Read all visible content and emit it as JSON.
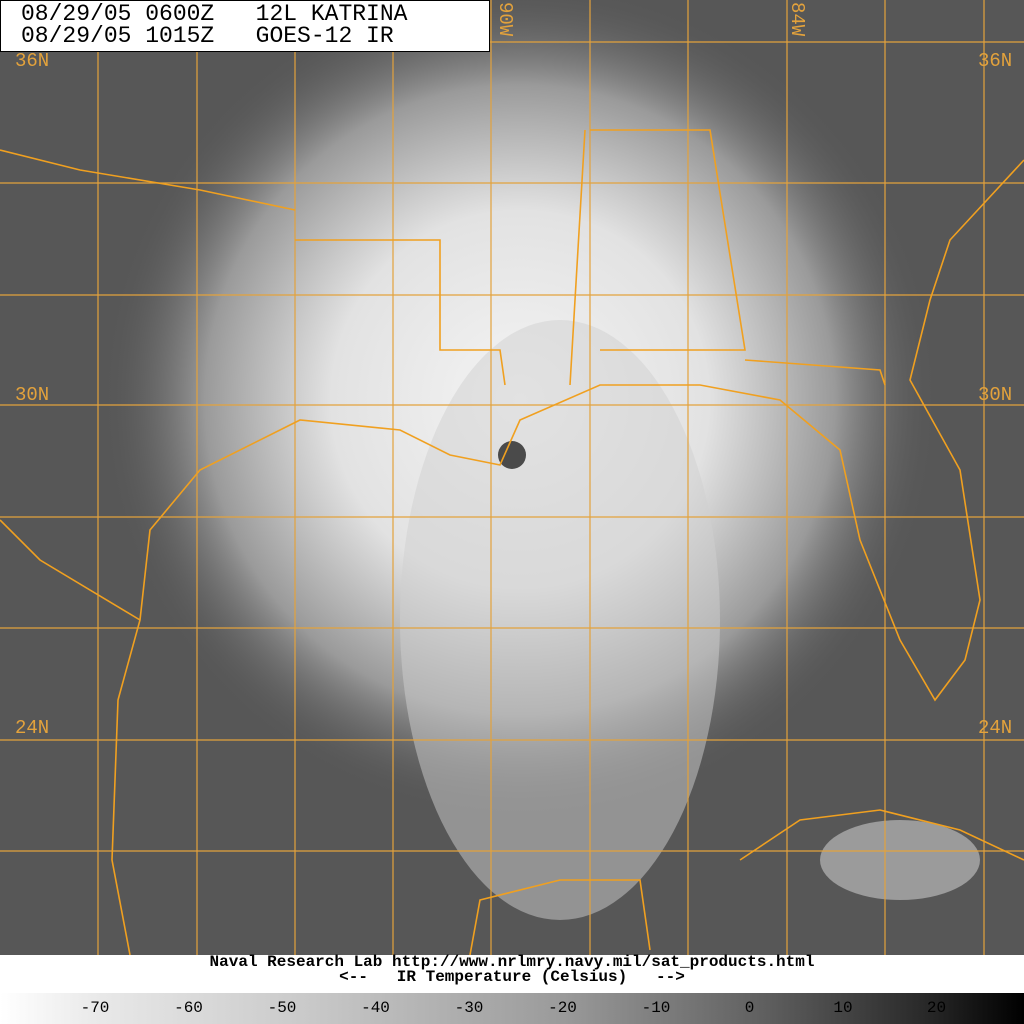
{
  "header": {
    "lines": [
      "08/29/05 0600Z   12L KATRINA",
      "08/29/05 1015Z   GOES-12 IR"
    ]
  },
  "grid_labels": {
    "latitudes": [
      "36N",
      "30N",
      "24N"
    ],
    "longitudes": [
      "90W",
      "84W"
    ]
  },
  "footer": {
    "credit": "Naval Research Lab http://www.nrlmry.navy.mil/sat_products.html",
    "scale_title": "<--   IR Temperature (Celsius)   -->",
    "scale_ticks": [
      "-70",
      "-60",
      "-50",
      "-40",
      "-30",
      "-20",
      "-10",
      "0",
      "10",
      "20"
    ]
  }
}
